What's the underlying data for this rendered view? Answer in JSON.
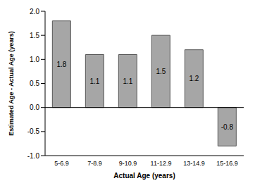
{
  "chart_data": {
    "type": "bar",
    "categories": [
      "5-6.9",
      "7-8.9",
      "9-10.9",
      "11-12.9",
      "13-14.9",
      "15-16.9"
    ],
    "values": [
      1.8,
      1.1,
      1.1,
      1.5,
      1.2,
      -0.8
    ],
    "color": "#a6a6a6",
    "xlabel": "Actual Age (years)",
    "ylabel": "Estimated Age - Actual Age (years)",
    "ylim": [
      -1,
      2
    ],
    "yticks": [
      {
        "value": -1,
        "label": "-1.0"
      },
      -0.5,
      {
        "value": 0,
        "label": "0.0"
      },
      0.5,
      {
        "value": 1,
        "label": "1.0"
      },
      1.5,
      {
        "value": 2,
        "label": "2.0"
      }
    ],
    "data_labels": true,
    "grid": false
  }
}
